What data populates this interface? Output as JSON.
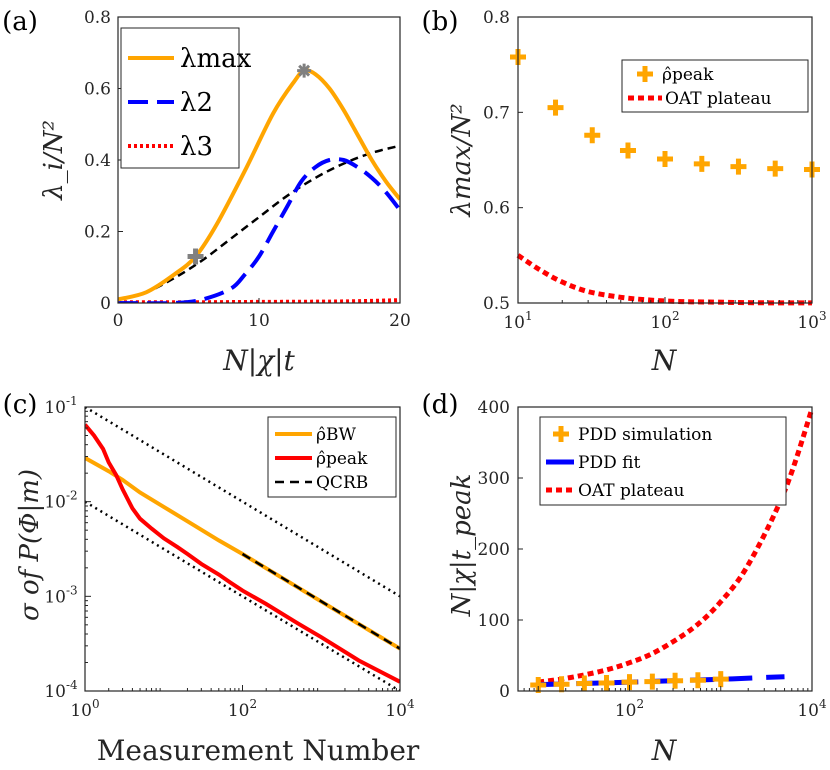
{
  "colors": {
    "orange": "#FFA500",
    "blue": "#0000FF",
    "red": "#FF0000",
    "black": "#000000",
    "gray": "#808080"
  },
  "chart_data": [
    {
      "panel": "(a)",
      "type": "line",
      "xlabel": "N|χ|t",
      "ylabel": "λ_i/N²",
      "xlim": [
        0,
        20
      ],
      "ylim": [
        0,
        0.8
      ],
      "xticks": [
        "0",
        "10",
        "20"
      ],
      "yticks": [
        "0",
        "0.2",
        "0.4",
        "0.6",
        "0.8"
      ],
      "legend": {
        "position": "top-left",
        "entries": [
          "λmax",
          "λ2",
          "λ3"
        ]
      },
      "series": [
        {
          "name": "λmax",
          "x": [
            0,
            2,
            4,
            5.5,
            7,
            9,
            11,
            12.5,
            13.2,
            14,
            15,
            16,
            17,
            18,
            19,
            20
          ],
          "y": [
            0.01,
            0.03,
            0.08,
            0.13,
            0.22,
            0.37,
            0.53,
            0.62,
            0.65,
            0.64,
            0.6,
            0.54,
            0.47,
            0.4,
            0.34,
            0.29
          ]
        },
        {
          "name": "λ2",
          "x": [
            0,
            4,
            6,
            8,
            9,
            10,
            11,
            12,
            13,
            14,
            15,
            16,
            17,
            18,
            19,
            20
          ],
          "y": [
            0.0,
            0.0,
            0.01,
            0.04,
            0.08,
            0.13,
            0.2,
            0.27,
            0.34,
            0.38,
            0.4,
            0.4,
            0.38,
            0.35,
            0.31,
            0.26
          ]
        },
        {
          "name": "λ3",
          "x": [
            0,
            5,
            10,
            15,
            18,
            20
          ],
          "y": [
            0.002,
            0.002,
            0.003,
            0.004,
            0.006,
            0.008
          ]
        },
        {
          "name": "reference",
          "x": [
            0,
            2,
            4,
            6,
            8,
            10,
            12,
            14,
            16,
            18,
            20
          ],
          "y": [
            0.01,
            0.03,
            0.07,
            0.12,
            0.18,
            0.24,
            0.3,
            0.35,
            0.39,
            0.42,
            0.44
          ]
        }
      ],
      "markers": [
        {
          "x": 5.5,
          "y": 0.13,
          "symbol": "+"
        },
        {
          "x": 13.2,
          "y": 0.65,
          "symbol": "*"
        }
      ]
    },
    {
      "panel": "(b)",
      "type": "scatter",
      "xlabel": "N",
      "ylabel": "λmax/N²",
      "xscale": "log",
      "xlim": [
        10,
        1000
      ],
      "ylim": [
        0.5,
        0.8
      ],
      "xticks": [
        "10",
        "10",
        "10"
      ],
      "xtick_exponents": [
        "1",
        "2",
        "3"
      ],
      "yticks": [
        "0.5",
        "0.6",
        "0.7",
        "0.8"
      ],
      "legend": {
        "position": "top-right",
        "entries": [
          "ρ̂peak",
          "OAT plateau"
        ]
      },
      "series": [
        {
          "name": "ρ̂peak",
          "x": [
            10,
            18,
            32,
            56,
            100,
            178,
            316,
            562,
            1000
          ],
          "y": [
            0.758,
            0.705,
            0.676,
            0.66,
            0.651,
            0.646,
            0.643,
            0.641,
            0.64
          ]
        },
        {
          "name": "OAT plateau",
          "x": [
            10,
            14,
            20,
            30,
            50,
            80,
            130,
            200,
            400,
            1000
          ],
          "y": [
            0.55,
            0.535,
            0.522,
            0.512,
            0.506,
            0.503,
            0.5015,
            0.501,
            0.5003,
            0.5001
          ]
        }
      ]
    },
    {
      "panel": "(c)",
      "type": "line",
      "xlabel": "Measurement Number",
      "ylabel": "σ of P(Φ|m)",
      "xscale": "log",
      "yscale": "log",
      "xlim": [
        1,
        10000
      ],
      "ylim": [
        0.0001,
        0.1
      ],
      "xticks": [
        "10",
        "10",
        "10"
      ],
      "xtick_exponents": [
        "0",
        "2",
        "4"
      ],
      "yticks": [
        "10",
        "10",
        "10",
        "10"
      ],
      "ytick_exponents": [
        "-4",
        "-3",
        "-2",
        "-1"
      ],
      "legend": {
        "position": "top-right",
        "entries": [
          "ρ̂BW",
          "ρ̂peak",
          "QCRB"
        ]
      },
      "series": [
        {
          "name": "ρ̂BW",
          "x": [
            1,
            2,
            3,
            5,
            10,
            20,
            50,
            100,
            1000,
            10000
          ],
          "y": [
            0.029,
            0.021,
            0.017,
            0.0125,
            0.0088,
            0.0062,
            0.0039,
            0.0028,
            0.00088,
            0.00028
          ]
        },
        {
          "name": "ρ̂peak",
          "x": [
            1,
            1.3,
            1.7,
            2,
            2.5,
            3,
            4,
            5,
            7,
            10,
            15,
            20,
            30,
            50,
            70,
            100,
            200,
            500,
            1000,
            3000,
            10000
          ],
          "y": [
            0.065,
            0.05,
            0.036,
            0.026,
            0.019,
            0.0135,
            0.0085,
            0.0066,
            0.0052,
            0.0041,
            0.0033,
            0.0028,
            0.0022,
            0.0017,
            0.0014,
            0.00115,
            0.00083,
            0.00052,
            0.00037,
            0.00021,
            0.000125
          ]
        },
        {
          "name": "QCRB",
          "x": [
            100,
            10000
          ],
          "y": [
            0.0028,
            0.00028
          ]
        },
        {
          "name": "guide upper",
          "x": [
            1,
            10000
          ],
          "y": [
            0.1,
            0.001
          ]
        },
        {
          "name": "guide lower",
          "x": [
            1,
            10000
          ],
          "y": [
            0.01,
            0.0001
          ]
        }
      ]
    },
    {
      "panel": "(d)",
      "type": "line",
      "xlabel": "N",
      "ylabel": "N|χ|t_peak",
      "xscale": "log",
      "xlim": [
        6,
        10000
      ],
      "ylim": [
        0,
        400
      ],
      "xticks": [
        "10",
        "10"
      ],
      "xtick_exponents": [
        "2",
        "4"
      ],
      "yticks": [
        "0",
        "100",
        "200",
        "300",
        "400"
      ],
      "legend": {
        "position": "top-left",
        "entries": [
          "PDD simulation",
          "PDD fit",
          "OAT plateau"
        ]
      },
      "series": [
        {
          "name": "PDD simulation",
          "x": [
            10,
            18,
            32,
            56,
            100,
            178,
            316,
            562,
            1000
          ],
          "y": [
            8.5,
            9.5,
            10.5,
            11.2,
            12.5,
            13.2,
            14.5,
            15.2,
            16.8
          ]
        },
        {
          "name": "PDD fit",
          "x": [
            10,
            30,
            100,
            300,
            1000,
            3000,
            5000
          ],
          "y": [
            9,
            10.5,
            12.5,
            14.5,
            16.5,
            19,
            20
          ]
        },
        {
          "name": "OAT plateau",
          "x": [
            10,
            20,
            50,
            100,
            200,
            500,
            1000,
            2000,
            5000,
            10000
          ],
          "y": [
            12.6,
            17.8,
            28.1,
            39.8,
            56.2,
            88.9,
            125.7,
            177.8,
            281.2,
            397.6
          ]
        }
      ]
    }
  ]
}
